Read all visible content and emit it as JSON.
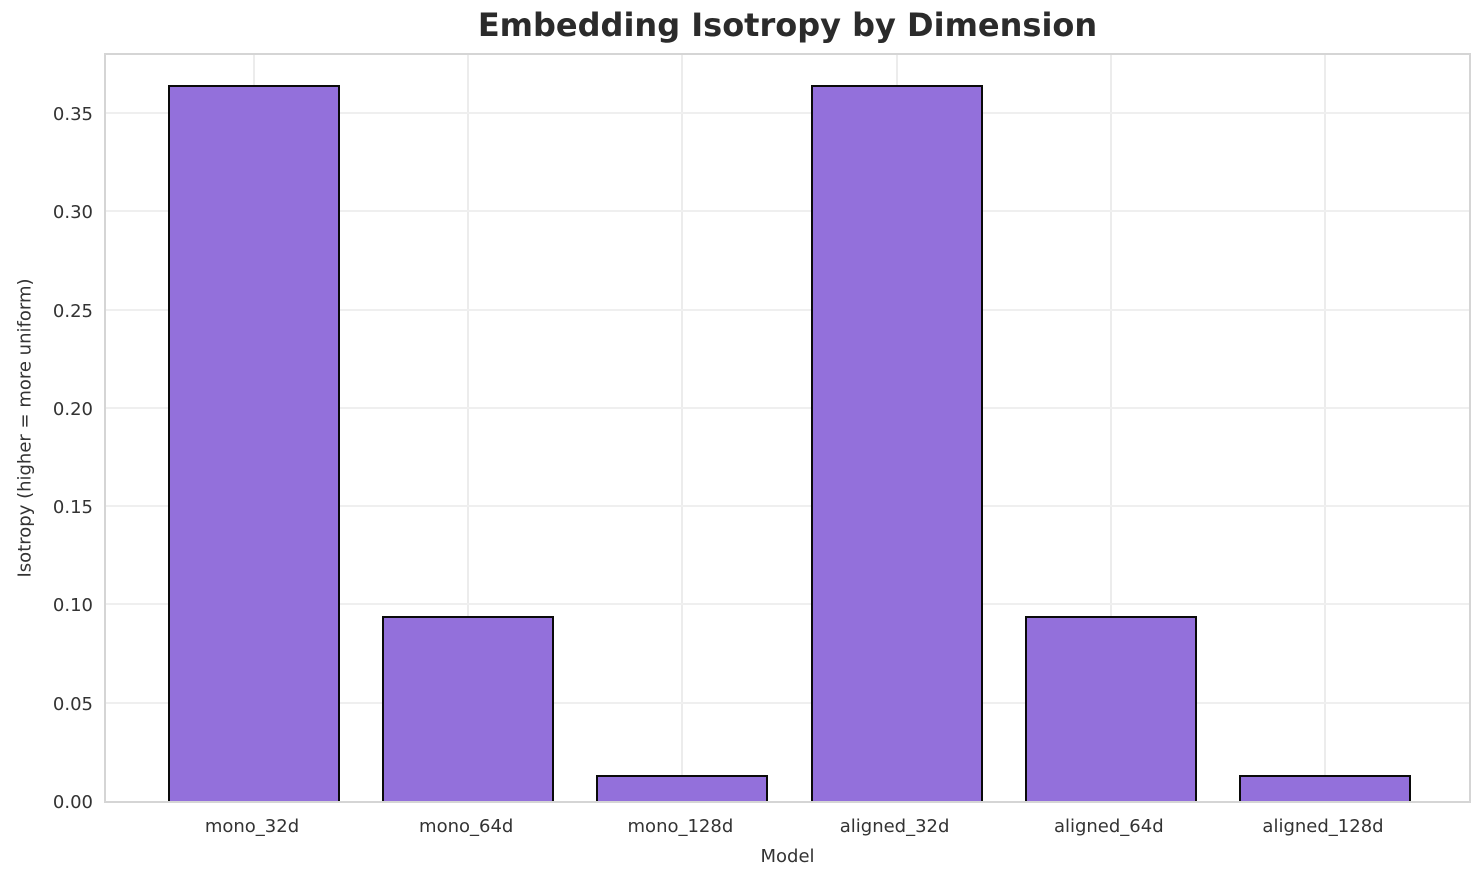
{
  "figure": {
    "background": "#ffffff"
  },
  "chart_data": {
    "type": "bar",
    "title": "Embedding Isotropy by Dimension",
    "xlabel": "Model",
    "ylabel": "Isotropy (higher = more uniform)",
    "categories": [
      "mono_32d",
      "mono_64d",
      "mono_128d",
      "aligned_32d",
      "aligned_64d",
      "aligned_128d"
    ],
    "values": [
      0.364,
      0.094,
      0.013,
      0.364,
      0.094,
      0.013
    ],
    "ytick_values": [
      0.0,
      0.05,
      0.1,
      0.15,
      0.2,
      0.25,
      0.3,
      0.35
    ],
    "ytick_labels": [
      "0.00",
      "0.05",
      "0.10",
      "0.15",
      "0.20",
      "0.25",
      "0.30",
      "0.35"
    ],
    "ylim": [
      0,
      0.3815
    ],
    "grid": true,
    "legend": "none",
    "colors": {
      "bar_fill": "#9370DB",
      "bar_edge": "#0a0a0a",
      "gridline": "#efefef",
      "spine": "#d5d5d5",
      "tick_text": "#333333",
      "title_text": "#2b2b2b"
    }
  }
}
